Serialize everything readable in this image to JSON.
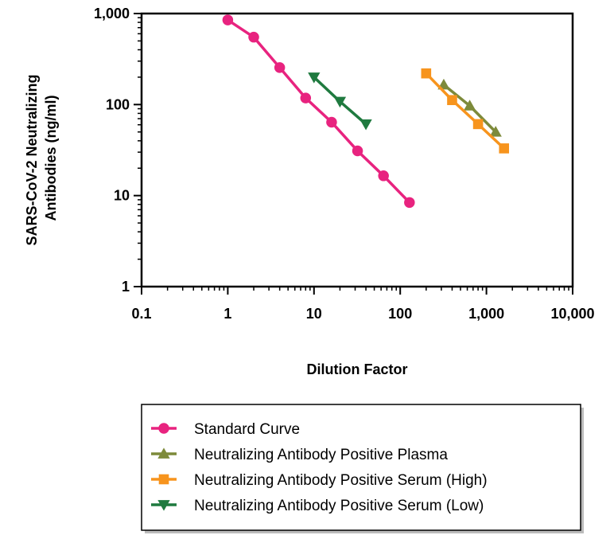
{
  "chart_data": {
    "type": "line",
    "xscale": "log",
    "yscale": "log",
    "xlim": [
      0.1,
      10000
    ],
    "ylim": [
      1,
      1000
    ],
    "xlabel": "Dilution Factor",
    "ylabel": "SARS-CoV-2 Neutralizing Antibodies (ng/ml)",
    "ylabel_lines": [
      "SARS-CoV-2 Neutralizing",
      "Antibodies (ng/ml)"
    ],
    "x_ticks": [
      {
        "value": 0.1,
        "label": "0.1"
      },
      {
        "value": 1,
        "label": "1"
      },
      {
        "value": 10,
        "label": "10"
      },
      {
        "value": 100,
        "label": "100"
      },
      {
        "value": 1000,
        "label": "1,000"
      },
      {
        "value": 10000,
        "label": "10,000"
      }
    ],
    "y_ticks": [
      {
        "value": 1,
        "label": "1"
      },
      {
        "value": 10,
        "label": "10"
      },
      {
        "value": 100,
        "label": "100"
      },
      {
        "value": 1000,
        "label": "1,000"
      }
    ],
    "grid": false,
    "legend_position": "bottom",
    "series": [
      {
        "name": "Standard Curve",
        "color": "#e8237f",
        "marker": "circle",
        "x": [
          1,
          2,
          4,
          8,
          16,
          32,
          64,
          128
        ],
        "y": [
          850,
          550,
          255,
          118,
          64,
          31,
          16.5,
          8.4
        ]
      },
      {
        "name": "Neutralizing Antibody Positive Plasma",
        "color": "#7d8a3a",
        "marker": "triangle-up",
        "x": [
          320,
          640,
          1280
        ],
        "y": [
          165,
          97,
          50
        ]
      },
      {
        "name": "Neutralizing Antibody Positive Serum (High)",
        "color": "#f7941d",
        "marker": "square",
        "x": [
          200,
          400,
          800,
          1600
        ],
        "y": [
          220,
          112,
          61,
          33
        ]
      },
      {
        "name": "Neutralizing Antibody Positive Serum (Low)",
        "color": "#1f7a3f",
        "marker": "triangle-down",
        "x": [
          10,
          20,
          40
        ],
        "y": [
          200,
          108,
          61
        ]
      }
    ]
  }
}
